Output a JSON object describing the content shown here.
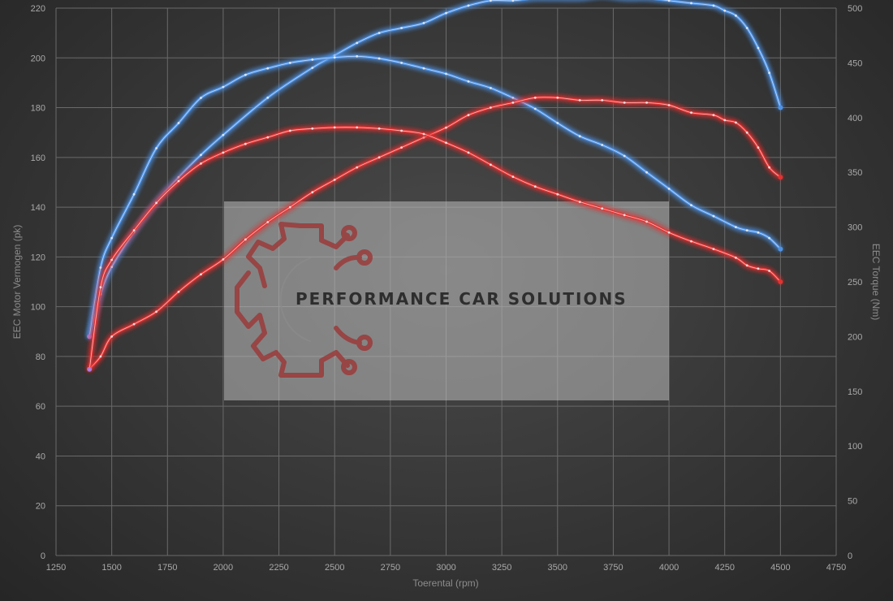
{
  "chart_data": {
    "type": "line",
    "xlabel": "Toerental (rpm)",
    "ylabel_left": "EEC Motor Vermogen (pk)",
    "ylabel_right": "EEC Torque (Nm)",
    "xlim": [
      1250,
      4750
    ],
    "x_ticks": [
      1250,
      1500,
      1750,
      2000,
      2250,
      2500,
      2750,
      3000,
      3250,
      3500,
      3750,
      4000,
      4250,
      4500,
      4750
    ],
    "ylim_left": [
      0,
      220
    ],
    "y_left_ticks": [
      0,
      20,
      40,
      60,
      80,
      100,
      120,
      140,
      160,
      180,
      200,
      220
    ],
    "ylim_right": [
      0,
      500
    ],
    "y_right_ticks": [
      0,
      50,
      100,
      150,
      200,
      250,
      300,
      350,
      400,
      450,
      500
    ],
    "grid": true,
    "legend": "none",
    "series": [
      {
        "axis": "left",
        "color": "#4f93e6",
        "x": [
          1400,
          1450,
          1500,
          1600,
          1700,
          1800,
          1900,
          2000,
          2200,
          2400,
          2500,
          2600,
          2700,
          2800,
          2900,
          3000,
          3100,
          3200,
          3300,
          3400,
          3500,
          3600,
          3700,
          3800,
          3900,
          4000,
          4100,
          4200,
          4250,
          4300,
          4350,
          4400,
          4450,
          4500
        ],
        "values": [
          88,
          105,
          116,
          130,
          142,
          152,
          161,
          169,
          184,
          196,
          201,
          206,
          210,
          212,
          214,
          218,
          221,
          223,
          223,
          224,
          224,
          224,
          225,
          224,
          224,
          223,
          222,
          221,
          219,
          217,
          212,
          204,
          194,
          180
        ]
      },
      {
        "axis": "right",
        "color": "#4f93e6",
        "x": [
          1400,
          1450,
          1500,
          1600,
          1700,
          1800,
          1900,
          2000,
          2100,
          2200,
          2300,
          2400,
          2500,
          2600,
          2700,
          2800,
          2900,
          3000,
          3100,
          3200,
          3300,
          3400,
          3500,
          3600,
          3700,
          3800,
          3900,
          4000,
          4100,
          4200,
          4300,
          4350,
          4400,
          4450,
          4500
        ],
        "values": [
          200,
          263,
          290,
          330,
          372,
          395,
          418,
          428,
          439,
          445,
          450,
          453,
          455,
          456,
          454,
          450,
          445,
          440,
          433,
          427,
          418,
          408,
          395,
          383,
          375,
          365,
          350,
          335,
          320,
          310,
          300,
          297,
          295,
          290,
          280
        ]
      },
      {
        "axis": "left",
        "color": "#e23232",
        "x": [
          1400,
          1450,
          1500,
          1600,
          1700,
          1800,
          1900,
          2000,
          2100,
          2200,
          2300,
          2400,
          2500,
          2600,
          2700,
          2800,
          2900,
          3000,
          3100,
          3200,
          3300,
          3400,
          3500,
          3600,
          3700,
          3800,
          3900,
          4000,
          4100,
          4200,
          4250,
          4300,
          4350,
          4400,
          4450,
          4500
        ],
        "values": [
          75,
          80,
          88,
          93,
          98,
          106,
          113,
          119,
          127,
          134,
          140,
          146,
          151,
          156,
          160,
          164,
          168,
          172,
          177,
          180,
          182,
          184,
          184,
          183,
          183,
          182,
          182,
          181,
          178,
          177,
          175,
          174,
          170,
          164,
          156,
          152
        ]
      },
      {
        "axis": "right",
        "color": "#e23232",
        "x": [
          1400,
          1450,
          1500,
          1600,
          1700,
          1800,
          1900,
          2000,
          2100,
          2200,
          2300,
          2400,
          2500,
          2600,
          2700,
          2800,
          2900,
          3000,
          3100,
          3200,
          3300,
          3400,
          3500,
          3600,
          3700,
          3800,
          3900,
          4000,
          4100,
          4200,
          4300,
          4350,
          4400,
          4450,
          4500
        ],
        "values": [
          170,
          245,
          270,
          297,
          322,
          342,
          358,
          368,
          376,
          382,
          388,
          390,
          391,
          391,
          390,
          388,
          385,
          377,
          368,
          357,
          346,
          337,
          330,
          323,
          317,
          311,
          305,
          295,
          287,
          280,
          272,
          265,
          262,
          260,
          250
        ]
      }
    ]
  },
  "watermark": {
    "text": "PERFORMANCE CAR SOLUTIONS"
  }
}
